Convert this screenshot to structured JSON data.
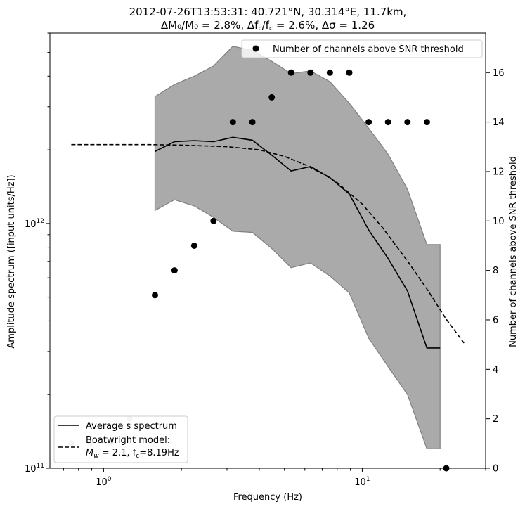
{
  "chart_data": {
    "type": "line",
    "title_line1": "2012-07-26T13:53:31: 40.721°N, 30.314°E, 11.7km,",
    "title_line2": "ΔM₀/M₀ = 2.8%, Δf꜀/f꜀ = 2.6%, Δσ = 1.26",
    "xlabel": "Frequency (Hz)",
    "ylabel_left": "Amplitude spectrum ([input units/Hz])",
    "ylabel_right": "Number of channels above SNR threshold",
    "x_scale": "log",
    "y_left_scale": "log",
    "xlim": [
      0.62,
      30
    ],
    "ylim_left": [
      100000000000.0,
      6000000000000.0
    ],
    "ylim_right": [
      0,
      17.6
    ],
    "x_tick_labels": [
      {
        "value": 1,
        "base": "10",
        "exp": "0"
      },
      {
        "value": 10,
        "base": "10",
        "exp": "1"
      }
    ],
    "y_left_tick_labels": [
      {
        "value": 100000000000.0,
        "base": "10",
        "exp": "11"
      },
      {
        "value": 1000000000000.0,
        "base": "10",
        "exp": "12"
      }
    ],
    "y_right_ticks": [
      0,
      2,
      4,
      6,
      8,
      10,
      12,
      14,
      16
    ],
    "legend_top_right": "Number of channels above SNR threshold",
    "legend_bottom_left": {
      "average": "Average s spectrum",
      "model_line1": "Boatwright model:",
      "model_line2_prefix": "M",
      "model_line2_sub": "w",
      "model_line2_mid": " = 2.1, f",
      "model_line2_sub2": "c",
      "model_line2_suffix": "=8.19Hz"
    },
    "band": {
      "x": [
        1.58,
        1.88,
        2.24,
        2.66,
        3.16,
        3.76,
        4.47,
        5.31,
        6.31,
        7.5,
        8.91,
        10.59,
        12.59,
        14.96,
        17.78,
        20.0
      ],
      "upper": [
        3300000000000.0,
        3700000000000.0,
        4000000000000.0,
        4400000000000.0,
        5300000000000.0,
        5100000000000.0,
        4600000000000.0,
        4100000000000.0,
        4200000000000.0,
        3800000000000.0,
        3100000000000.0,
        2450000000000.0,
        1920000000000.0,
        1380000000000.0,
        820000000000.0,
        820000000000.0
      ],
      "lower": [
        1130000000000.0,
        1250000000000.0,
        1180000000000.0,
        1060000000000.0,
        930000000000.0,
        920000000000.0,
        790000000000.0,
        660000000000.0,
        690000000000.0,
        610000000000.0,
        520000000000.0,
        340000000000.0,
        260000000000.0,
        200000000000.0,
        120000000000.0,
        120000000000.0
      ]
    },
    "average_spectrum": {
      "x": [
        1.58,
        1.88,
        2.24,
        2.66,
        3.16,
        3.76,
        4.47,
        5.31,
        6.31,
        7.5,
        8.91,
        10.59,
        12.59,
        14.96,
        17.78,
        20.0
      ],
      "y": [
        1970000000000.0,
        2160000000000.0,
        2180000000000.0,
        2160000000000.0,
        2250000000000.0,
        2190000000000.0,
        1900000000000.0,
        1640000000000.0,
        1710000000000.0,
        1540000000000.0,
        1320000000000.0,
        940000000000.0,
        720000000000.0,
        530000000000.0,
        310000000000.0,
        310000000000.0
      ]
    },
    "boatwright_model": {
      "x": [
        0.75,
        1.0,
        1.5,
        2.0,
        3.0,
        4.0,
        5.0,
        6.0,
        7.0,
        8.0,
        9.0,
        10.0,
        12.0,
        15.0,
        18.0,
        21.0,
        25.0
      ],
      "y": [
        2100000000000.0,
        2100000000000.0,
        2100000000000.0,
        2090000000000.0,
        2060000000000.0,
        2000000000000.0,
        1880000000000.0,
        1740000000000.0,
        1600000000000.0,
        1470000000000.0,
        1320000000000.0,
        1200000000000.0,
        960000000000.0,
        700000000000.0,
        530000000000.0,
        410000000000.0,
        320000000000.0
      ]
    },
    "snr_channels": {
      "x": [
        0.75,
        0.89,
        1.06,
        1.26,
        1.58,
        1.88,
        2.24,
        2.66,
        3.16,
        3.76,
        4.47,
        5.31,
        6.31,
        7.5,
        8.91,
        10.59,
        12.59,
        14.96,
        17.78,
        21.13
      ],
      "y": [
        1,
        1,
        1,
        2,
        7,
        8,
        9,
        10,
        14,
        14,
        15,
        16,
        16,
        16,
        16,
        14,
        14,
        14,
        14,
        0
      ],
      "note_colors": [
        "#cccccc",
        "#cccccc",
        "#cccccc",
        "#cccccc",
        "#000000",
        "#000000",
        "#000000",
        "#000000",
        "#000000",
        "#000000",
        "#000000",
        "#000000",
        "#000000",
        "#000000",
        "#000000",
        "#000000",
        "#000000",
        "#000000",
        "#000000",
        "#000000"
      ]
    },
    "colors": {
      "band_fill": "#aaaaaa",
      "band_edge": "#808080",
      "line": "#000000",
      "marker": "#000000",
      "marker_faded": "#cccccc"
    },
    "grid": false
  }
}
